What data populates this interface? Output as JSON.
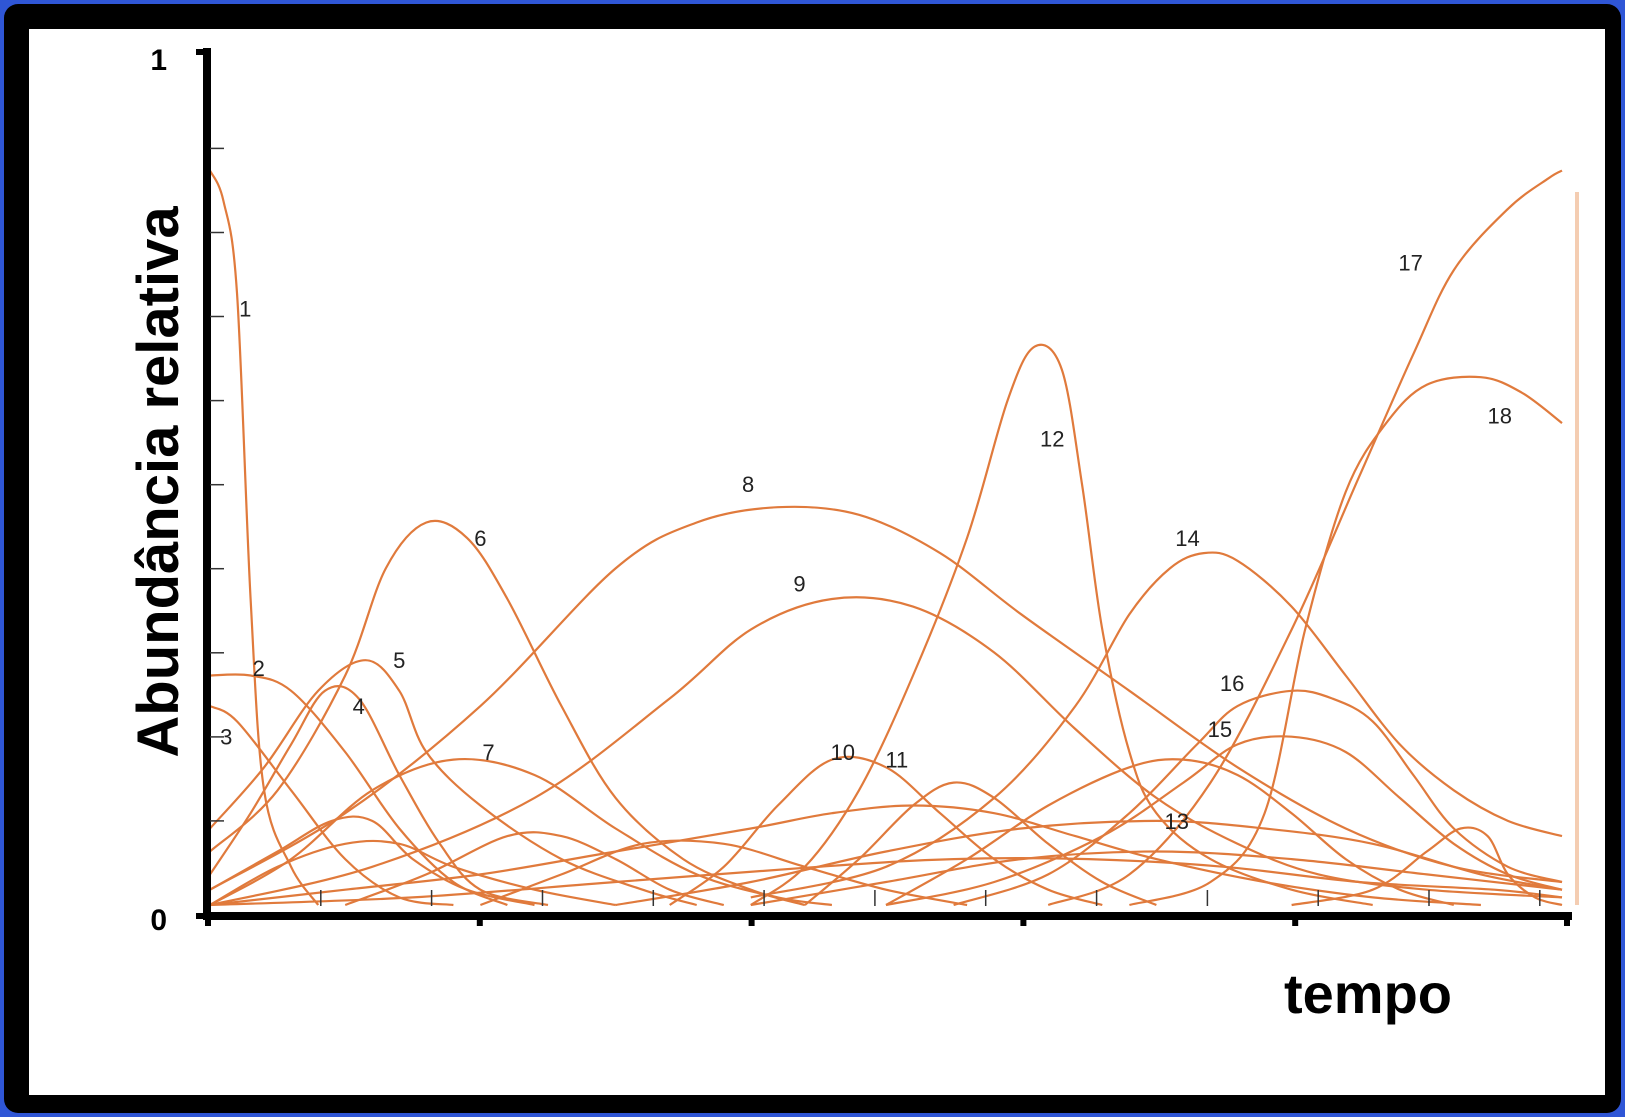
{
  "chart_data": {
    "type": "line",
    "xlabel": "tempo",
    "ylabel": "Abundância relativa",
    "ylim": [
      0,
      1
    ],
    "y_tick_labels": [
      "0",
      "1"
    ],
    "grid": false,
    "line_color": "#e07a3c",
    "series": [
      {
        "name": "1",
        "points": [
          [
            0,
            0.96
          ],
          [
            0.01,
            0.92
          ],
          [
            0.02,
            0.8
          ],
          [
            0.03,
            0.4
          ],
          [
            0.04,
            0.15
          ],
          [
            0.06,
            0.05
          ],
          [
            0.08,
            0.0
          ]
        ]
      },
      {
        "name": "2",
        "points": [
          [
            0,
            0.3
          ],
          [
            0.03,
            0.3
          ],
          [
            0.06,
            0.28
          ],
          [
            0.1,
            0.2
          ],
          [
            0.14,
            0.1
          ],
          [
            0.18,
            0.03
          ],
          [
            0.22,
            0.0
          ]
        ]
      },
      {
        "name": "3",
        "points": [
          [
            0,
            0.26
          ],
          [
            0.02,
            0.24
          ],
          [
            0.06,
            0.15
          ],
          [
            0.1,
            0.06
          ],
          [
            0.14,
            0.01
          ],
          [
            0.18,
            0.0
          ]
        ]
      },
      {
        "name": "4",
        "points": [
          [
            0,
            0.04
          ],
          [
            0.03,
            0.12
          ],
          [
            0.06,
            0.21
          ],
          [
            0.085,
            0.28
          ],
          [
            0.11,
            0.27
          ],
          [
            0.14,
            0.17
          ],
          [
            0.17,
            0.08
          ],
          [
            0.2,
            0.02
          ],
          [
            0.25,
            0.0
          ]
        ]
      },
      {
        "name": "5",
        "points": [
          [
            0,
            0.1
          ],
          [
            0.04,
            0.18
          ],
          [
            0.08,
            0.28
          ],
          [
            0.115,
            0.32
          ],
          [
            0.14,
            0.28
          ],
          [
            0.16,
            0.2
          ],
          [
            0.2,
            0.13
          ],
          [
            0.26,
            0.06
          ],
          [
            0.32,
            0.02
          ],
          [
            0.36,
            0.0
          ]
        ]
      },
      {
        "name": "6",
        "points": [
          [
            0,
            0.07
          ],
          [
            0.05,
            0.15
          ],
          [
            0.1,
            0.3
          ],
          [
            0.13,
            0.44
          ],
          [
            0.16,
            0.5
          ],
          [
            0.19,
            0.48
          ],
          [
            0.22,
            0.4
          ],
          [
            0.26,
            0.26
          ],
          [
            0.3,
            0.14
          ],
          [
            0.35,
            0.06
          ],
          [
            0.4,
            0.02
          ],
          [
            0.44,
            0.0
          ]
        ]
      },
      {
        "name": "7",
        "points": [
          [
            0,
            0.0
          ],
          [
            0.06,
            0.06
          ],
          [
            0.12,
            0.15
          ],
          [
            0.18,
            0.19
          ],
          [
            0.24,
            0.17
          ],
          [
            0.3,
            0.1
          ],
          [
            0.36,
            0.04
          ],
          [
            0.42,
            0.01
          ],
          [
            0.46,
            0.0
          ]
        ]
      },
      {
        "name": "8",
        "points": [
          [
            0,
            0.02
          ],
          [
            0.1,
            0.12
          ],
          [
            0.2,
            0.26
          ],
          [
            0.3,
            0.44
          ],
          [
            0.36,
            0.5
          ],
          [
            0.42,
            0.52
          ],
          [
            0.48,
            0.51
          ],
          [
            0.54,
            0.46
          ],
          [
            0.6,
            0.38
          ],
          [
            0.68,
            0.28
          ],
          [
            0.76,
            0.18
          ],
          [
            0.84,
            0.1
          ],
          [
            0.92,
            0.05
          ],
          [
            1.0,
            0.03
          ]
        ]
      },
      {
        "name": "9",
        "points": [
          [
            0,
            0.0
          ],
          [
            0.12,
            0.05
          ],
          [
            0.24,
            0.14
          ],
          [
            0.34,
            0.27
          ],
          [
            0.4,
            0.36
          ],
          [
            0.46,
            0.4
          ],
          [
            0.52,
            0.39
          ],
          [
            0.58,
            0.33
          ],
          [
            0.64,
            0.23
          ],
          [
            0.7,
            0.14
          ],
          [
            0.76,
            0.08
          ],
          [
            0.82,
            0.04
          ],
          [
            0.9,
            0.02
          ],
          [
            1.0,
            0.01
          ]
        ]
      },
      {
        "name": "10",
        "points": [
          [
            0.34,
            0.0
          ],
          [
            0.38,
            0.05
          ],
          [
            0.42,
            0.13
          ],
          [
            0.46,
            0.19
          ],
          [
            0.5,
            0.18
          ],
          [
            0.54,
            0.12
          ],
          [
            0.58,
            0.06
          ],
          [
            0.62,
            0.02
          ],
          [
            0.66,
            0.0
          ]
        ]
      },
      {
        "name": "11",
        "points": [
          [
            0.44,
            0.0
          ],
          [
            0.48,
            0.06
          ],
          [
            0.52,
            0.13
          ],
          [
            0.55,
            0.16
          ],
          [
            0.58,
            0.14
          ],
          [
            0.62,
            0.08
          ],
          [
            0.66,
            0.03
          ],
          [
            0.7,
            0.0
          ]
        ]
      },
      {
        "name": "12",
        "points": [
          [
            0.4,
            0.0
          ],
          [
            0.44,
            0.05
          ],
          [
            0.48,
            0.15
          ],
          [
            0.52,
            0.3
          ],
          [
            0.56,
            0.48
          ],
          [
            0.59,
            0.66
          ],
          [
            0.61,
            0.73
          ],
          [
            0.63,
            0.7
          ],
          [
            0.645,
            0.55
          ],
          [
            0.66,
            0.36
          ],
          [
            0.68,
            0.2
          ],
          [
            0.7,
            0.12
          ],
          [
            0.74,
            0.06
          ],
          [
            0.8,
            0.02
          ],
          [
            0.86,
            0.0
          ]
        ]
      },
      {
        "name": "13",
        "points": [
          [
            0.5,
            0.0
          ],
          [
            0.56,
            0.06
          ],
          [
            0.62,
            0.13
          ],
          [
            0.68,
            0.18
          ],
          [
            0.72,
            0.19
          ],
          [
            0.76,
            0.17
          ],
          [
            0.8,
            0.12
          ],
          [
            0.84,
            0.06
          ],
          [
            0.88,
            0.02
          ],
          [
            0.92,
            0.0
          ]
        ]
      },
      {
        "name": "14",
        "points": [
          [
            0.4,
            0.01
          ],
          [
            0.5,
            0.05
          ],
          [
            0.58,
            0.14
          ],
          [
            0.64,
            0.26
          ],
          [
            0.68,
            0.38
          ],
          [
            0.71,
            0.44
          ],
          [
            0.735,
            0.46
          ],
          [
            0.76,
            0.45
          ],
          [
            0.8,
            0.39
          ],
          [
            0.84,
            0.3
          ],
          [
            0.88,
            0.21
          ],
          [
            0.92,
            0.15
          ],
          [
            0.96,
            0.11
          ],
          [
            1.0,
            0.09
          ]
        ]
      },
      {
        "name": "15",
        "points": [
          [
            0.5,
            0.0
          ],
          [
            0.58,
            0.03
          ],
          [
            0.66,
            0.09
          ],
          [
            0.72,
            0.16
          ],
          [
            0.76,
            0.21
          ],
          [
            0.8,
            0.22
          ],
          [
            0.84,
            0.2
          ],
          [
            0.88,
            0.14
          ],
          [
            0.92,
            0.08
          ],
          [
            0.96,
            0.04
          ],
          [
            1.0,
            0.02
          ]
        ]
      },
      {
        "name": "16",
        "points": [
          [
            0.55,
            0.0
          ],
          [
            0.62,
            0.04
          ],
          [
            0.68,
            0.12
          ],
          [
            0.73,
            0.21
          ],
          [
            0.76,
            0.26
          ],
          [
            0.8,
            0.28
          ],
          [
            0.83,
            0.27
          ],
          [
            0.86,
            0.24
          ],
          [
            0.89,
            0.17
          ],
          [
            0.92,
            0.1
          ],
          [
            0.96,
            0.05
          ],
          [
            1.0,
            0.03
          ]
        ]
      },
      {
        "name": "17",
        "points": [
          [
            0.62,
            0.0
          ],
          [
            0.68,
            0.04
          ],
          [
            0.74,
            0.16
          ],
          [
            0.8,
            0.36
          ],
          [
            0.85,
            0.56
          ],
          [
            0.89,
            0.72
          ],
          [
            0.92,
            0.83
          ],
          [
            0.96,
            0.91
          ],
          [
            0.99,
            0.95
          ],
          [
            1.0,
            0.96
          ]
        ]
      },
      {
        "name": "18",
        "points": [
          [
            0.68,
            0.0
          ],
          [
            0.74,
            0.03
          ],
          [
            0.78,
            0.12
          ],
          [
            0.81,
            0.36
          ],
          [
            0.84,
            0.54
          ],
          [
            0.87,
            0.63
          ],
          [
            0.9,
            0.68
          ],
          [
            0.94,
            0.69
          ],
          [
            0.97,
            0.67
          ],
          [
            1.0,
            0.63
          ]
        ]
      },
      {
        "name": "",
        "points": [
          [
            0,
            0.0
          ],
          [
            0.05,
            0.05
          ],
          [
            0.1,
            0.08
          ],
          [
            0.14,
            0.08
          ],
          [
            0.18,
            0.05
          ],
          [
            0.24,
            0.02
          ],
          [
            0.3,
            0.0
          ]
        ]
      },
      {
        "name": "",
        "points": [
          [
            0,
            0.02
          ],
          [
            0.05,
            0.07
          ],
          [
            0.09,
            0.11
          ],
          [
            0.12,
            0.11
          ],
          [
            0.15,
            0.06
          ],
          [
            0.19,
            0.02
          ],
          [
            0.24,
            0.0
          ]
        ]
      },
      {
        "name": "",
        "points": [
          [
            0.1,
            0.0
          ],
          [
            0.16,
            0.04
          ],
          [
            0.22,
            0.09
          ],
          [
            0.26,
            0.09
          ],
          [
            0.3,
            0.06
          ],
          [
            0.34,
            0.02
          ],
          [
            0.38,
            0.0
          ]
        ]
      },
      {
        "name": "",
        "points": [
          [
            0.2,
            0.0
          ],
          [
            0.26,
            0.04
          ],
          [
            0.32,
            0.08
          ],
          [
            0.38,
            0.08
          ],
          [
            0.44,
            0.05
          ],
          [
            0.5,
            0.02
          ],
          [
            0.56,
            0.0
          ]
        ]
      },
      {
        "name": "",
        "points": [
          [
            0,
            0.0
          ],
          [
            0.1,
            0.02
          ],
          [
            0.2,
            0.04
          ],
          [
            0.3,
            0.07
          ],
          [
            0.4,
            0.1
          ],
          [
            0.46,
            0.12
          ],
          [
            0.52,
            0.13
          ],
          [
            0.58,
            0.12
          ],
          [
            0.64,
            0.09
          ],
          [
            0.7,
            0.06
          ],
          [
            0.78,
            0.03
          ],
          [
            0.86,
            0.01
          ],
          [
            0.94,
            0.0
          ]
        ]
      },
      {
        "name": "",
        "points": [
          [
            0.3,
            0.0
          ],
          [
            0.4,
            0.03
          ],
          [
            0.5,
            0.07
          ],
          [
            0.6,
            0.1
          ],
          [
            0.7,
            0.11
          ],
          [
            0.78,
            0.1
          ],
          [
            0.86,
            0.08
          ],
          [
            0.94,
            0.04
          ],
          [
            1.0,
            0.02
          ]
        ]
      },
      {
        "name": "",
        "points": [
          [
            0.4,
            0.0
          ],
          [
            0.5,
            0.03
          ],
          [
            0.6,
            0.06
          ],
          [
            0.7,
            0.07
          ],
          [
            0.8,
            0.06
          ],
          [
            0.9,
            0.04
          ],
          [
            1.0,
            0.02
          ]
        ]
      },
      {
        "name": "",
        "points": [
          [
            0.8,
            0.0
          ],
          [
            0.86,
            0.02
          ],
          [
            0.9,
            0.07
          ],
          [
            0.925,
            0.1
          ],
          [
            0.945,
            0.09
          ],
          [
            0.96,
            0.04
          ],
          [
            0.98,
            0.01
          ],
          [
            1.0,
            0.0
          ]
        ]
      },
      {
        "name": "",
        "points": [
          [
            0,
            0.0
          ],
          [
            0.15,
            0.01
          ],
          [
            0.3,
            0.03
          ],
          [
            0.45,
            0.05
          ],
          [
            0.55,
            0.06
          ],
          [
            0.65,
            0.06
          ],
          [
            0.75,
            0.05
          ],
          [
            0.85,
            0.03
          ],
          [
            0.95,
            0.02
          ],
          [
            1.0,
            0.01
          ]
        ]
      }
    ],
    "labels": [
      {
        "text": "1",
        "x": 0.026,
        "y": 0.78
      },
      {
        "text": "2",
        "x": 0.036,
        "y": 0.31
      },
      {
        "text": "3",
        "x": 0.012,
        "y": 0.22
      },
      {
        "text": "4",
        "x": 0.11,
        "y": 0.26
      },
      {
        "text": "5",
        "x": 0.14,
        "y": 0.32
      },
      {
        "text": "6",
        "x": 0.2,
        "y": 0.48
      },
      {
        "text": "7",
        "x": 0.206,
        "y": 0.2
      },
      {
        "text": "8",
        "x": 0.398,
        "y": 0.55
      },
      {
        "text": "9",
        "x": 0.436,
        "y": 0.42
      },
      {
        "text": "10",
        "x": 0.468,
        "y": 0.2
      },
      {
        "text": "11",
        "x": 0.508,
        "y": 0.19
      },
      {
        "text": "12",
        "x": 0.623,
        "y": 0.61
      },
      {
        "text": "13",
        "x": 0.715,
        "y": 0.11
      },
      {
        "text": "14",
        "x": 0.723,
        "y": 0.48
      },
      {
        "text": "15",
        "x": 0.747,
        "y": 0.23
      },
      {
        "text": "16",
        "x": 0.756,
        "y": 0.29
      },
      {
        "text": "17",
        "x": 0.888,
        "y": 0.84
      },
      {
        "text": "18",
        "x": 0.954,
        "y": 0.64
      }
    ]
  }
}
